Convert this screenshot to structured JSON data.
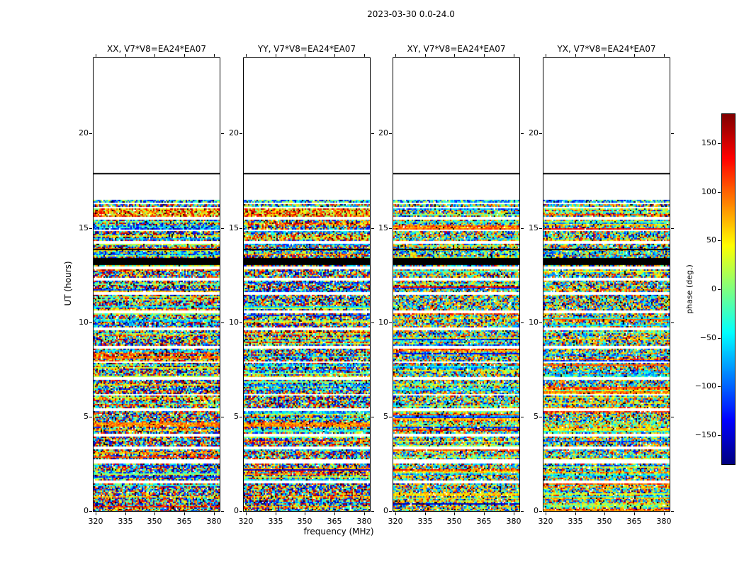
{
  "figure": {
    "title": "2023-03-30 0.0-24.0",
    "xlabel": "frequency (MHz)",
    "ylabel": "UT (hours)",
    "background_color": "#ffffff",
    "frame_color": "#000000"
  },
  "panels": [
    {
      "id": "xx",
      "title": "XX, V7*V8=EA24*EA07",
      "polarization": "XX"
    },
    {
      "id": "yy",
      "title": "YY, V7*V8=EA24*EA07",
      "polarization": "YY"
    },
    {
      "id": "xy",
      "title": "XY, V7*V8=EA24*EA07",
      "polarization": "XY"
    },
    {
      "id": "yx",
      "title": "YX, V7*V8=EA24*EA07",
      "polarization": "YX"
    }
  ],
  "axes": {
    "x": {
      "label": "frequency (MHz)",
      "min": 319,
      "max": 383,
      "ticks": [
        320,
        335,
        350,
        365,
        380
      ]
    },
    "y": {
      "label": "UT (hours)",
      "min": 0,
      "max": 24,
      "ticks": [
        0,
        5,
        10,
        15,
        20
      ]
    }
  },
  "colorbar": {
    "label": "phase (deg.)",
    "min": -180,
    "max": 180,
    "ticks": [
      150,
      100,
      50,
      0,
      -50,
      -100,
      -150
    ],
    "colormap": "jet",
    "key_colors": [
      "#00007f",
      "#0000ff",
      "#00ffff",
      "#7fff7f",
      "#ffff00",
      "#ff0000",
      "#7f0000"
    ]
  },
  "chart_data": {
    "type": "heatmap",
    "title": "2023-03-30 0.0-24.0",
    "date": "2023-03-30",
    "time_span_hours": "0.0-24.0",
    "baseline": "V7*V8=EA24*EA07",
    "subplot_titles": [
      "XX, V7*V8=EA24*EA07",
      "YY, V7*V8=EA24*EA07",
      "XY, V7*V8=EA24*EA07",
      "YX, V7*V8=EA24*EA07"
    ],
    "xlabel": "frequency (MHz)",
    "ylabel": "UT (hours)",
    "zlabel": "phase (deg.)",
    "x_range_mhz": [
      319,
      383
    ],
    "x_ticks_mhz": [
      320,
      335,
      350,
      365,
      380
    ],
    "y_range_hours": [
      0,
      24
    ],
    "y_ticks_hours": [
      0,
      5,
      10,
      15,
      20
    ],
    "z_range_deg": [
      -180,
      180
    ],
    "colormap": "jet",
    "legend_position": "right-colorbar",
    "grid": false,
    "data_extent_hours": [
      0,
      16.5
    ],
    "empty_white_region_hours": [
      16.5,
      24
    ],
    "separator_line_hour": 17.9,
    "black_band_hours": [
      13.05,
      13.4
    ],
    "black_lines_hours": [
      13.9,
      17.9
    ],
    "gaps_hours": [
      [
        1.45,
        1.62
      ],
      [
        2.55,
        2.72
      ],
      [
        3.3,
        3.42
      ],
      [
        3.98,
        4.12
      ],
      [
        5.28,
        5.42
      ],
      [
        6.1,
        6.22
      ],
      [
        6.98,
        7.12
      ],
      [
        7.82,
        7.95
      ],
      [
        8.6,
        8.75
      ],
      [
        9.55,
        9.7
      ],
      [
        10.45,
        10.6
      ],
      [
        11.45,
        11.6
      ],
      [
        12.2,
        12.35
      ],
      [
        12.82,
        12.98
      ],
      [
        14.18,
        14.32
      ],
      [
        14.8,
        14.92
      ],
      [
        15.42,
        15.55
      ],
      [
        16.02,
        16.12
      ],
      [
        16.28,
        16.36
      ]
    ],
    "coherent_bands": [
      {
        "t": [
          4.5,
          4.72
        ],
        "phase_deg": 110,
        "strength": 0.8,
        "panels": [
          0,
          1
        ]
      },
      {
        "t": [
          4.5,
          4.72
        ],
        "phase_deg": 60,
        "strength": 0.35,
        "panels": [
          2,
          3
        ]
      },
      {
        "t": [
          14.4,
          14.6
        ],
        "phase_deg": 150,
        "strength": 0.45,
        "panels": [
          1
        ]
      },
      {
        "t": [
          14.95,
          15.12
        ],
        "phase_deg": -150,
        "strength": 0.5,
        "panels": [
          0
        ]
      },
      {
        "t": [
          15.15,
          15.3
        ],
        "phase_deg": 170,
        "strength": 0.55,
        "panels": [
          1
        ]
      },
      {
        "t": [
          15.6,
          16.0
        ],
        "phase_deg": 165,
        "strength": 0.5,
        "panels": [
          0,
          1
        ]
      },
      {
        "t": [
          13.66,
          13.8
        ],
        "phase_deg": -100,
        "strength": 0.3,
        "panels": [
          0,
          1,
          2,
          3
        ]
      },
      {
        "t": [
          16.36,
          16.5
        ],
        "phase_deg": -170,
        "strength": 0.35,
        "panels": [
          0,
          1,
          2,
          3
        ]
      }
    ],
    "noise_description": "Per-channel interferometric visibility phases, visually pseudo-random (uniform -180 to 180 deg, jet colormap); horizontal streaks are scan-coherent phase rows; white horizontal rows are scan gaps; no data above UT 16.5."
  }
}
